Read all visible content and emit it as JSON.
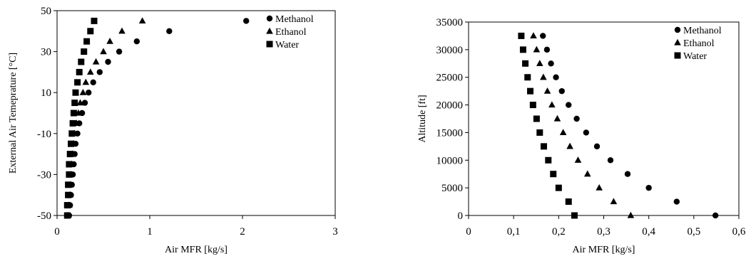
{
  "chart_data": [
    {
      "type": "scatter",
      "title": "",
      "xlabel": "Air MFR [kg/s]",
      "ylabel": "External Air Temeprature [°C]",
      "xlim": [
        0,
        3
      ],
      "ylim": [
        -50,
        50
      ],
      "xticks": [
        "0",
        "1",
        "2",
        "3"
      ],
      "yticks": [
        "-50",
        "-30",
        "-10",
        "10",
        "30",
        "50"
      ],
      "grid": false,
      "legend_position": "top-right",
      "series": [
        {
          "name": "Methanol",
          "marker": "circle",
          "color": "#000000",
          "x": [
            0.13,
            0.14,
            0.15,
            0.16,
            0.17,
            0.18,
            0.19,
            0.2,
            0.22,
            0.24,
            0.27,
            0.3,
            0.34,
            0.39,
            0.46,
            0.55,
            0.67,
            0.86,
            1.21,
            2.04
          ],
          "y": [
            -50,
            -45,
            -40,
            -35,
            -30,
            -25,
            -20,
            -15,
            -10,
            -5,
            0,
            5,
            10,
            15,
            20,
            25,
            30,
            35,
            40,
            45
          ]
        },
        {
          "name": "Ethanol",
          "marker": "triangle",
          "color": "#000000",
          "x": [
            0.12,
            0.13,
            0.14,
            0.145,
            0.15,
            0.16,
            0.17,
            0.18,
            0.19,
            0.21,
            0.23,
            0.25,
            0.28,
            0.31,
            0.36,
            0.42,
            0.5,
            0.57,
            0.7,
            0.92
          ],
          "y": [
            -50,
            -45,
            -40,
            -35,
            -30,
            -25,
            -20,
            -15,
            -10,
            -5,
            0,
            5,
            10,
            15,
            20,
            25,
            30,
            35,
            40,
            45
          ]
        },
        {
          "name": "Water",
          "marker": "square",
          "color": "#000000",
          "x": [
            0.11,
            0.11,
            0.12,
            0.12,
            0.13,
            0.13,
            0.14,
            0.15,
            0.16,
            0.17,
            0.18,
            0.19,
            0.2,
            0.22,
            0.24,
            0.26,
            0.29,
            0.32,
            0.36,
            0.4
          ],
          "y": [
            -50,
            -45,
            -40,
            -35,
            -30,
            -25,
            -20,
            -15,
            -10,
            -5,
            0,
            5,
            10,
            15,
            20,
            25,
            30,
            35,
            40,
            45
          ]
        }
      ]
    },
    {
      "type": "scatter",
      "title": "",
      "xlabel": "Air MFR [kg/s]",
      "ylabel": "Altitude [ft]",
      "xlim": [
        0,
        0.6
      ],
      "ylim": [
        0,
        35000
      ],
      "xticks": [
        "0",
        "0,1",
        "0,2",
        "0,3",
        "0,4",
        "0,5",
        "0,6"
      ],
      "yticks": [
        "0",
        "5000",
        "10000",
        "15000",
        "20000",
        "25000",
        "30000",
        "35000"
      ],
      "grid": false,
      "legend_position": "top-right",
      "series": [
        {
          "name": "Methanol",
          "marker": "circle",
          "color": "#000000",
          "x": [
            0.548,
            0.462,
            0.4,
            0.353,
            0.315,
            0.285,
            0.261,
            0.24,
            0.222,
            0.207,
            0.194,
            0.183,
            0.174,
            0.165
          ],
          "y": [
            0,
            2500,
            5000,
            7500,
            10000,
            12500,
            15000,
            17500,
            20000,
            22500,
            25000,
            27500,
            30000,
            32500
          ]
        },
        {
          "name": "Ethanol",
          "marker": "triangle",
          "color": "#000000",
          "x": [
            0.36,
            0.322,
            0.29,
            0.264,
            0.243,
            0.225,
            0.21,
            0.197,
            0.185,
            0.175,
            0.166,
            0.158,
            0.151,
            0.144
          ],
          "y": [
            0,
            2500,
            5000,
            7500,
            10000,
            12500,
            15000,
            17500,
            20000,
            22500,
            25000,
            27500,
            30000,
            32500
          ]
        },
        {
          "name": "Water",
          "marker": "square",
          "color": "#000000",
          "x": [
            0.235,
            0.222,
            0.2,
            0.188,
            0.177,
            0.167,
            0.158,
            0.151,
            0.143,
            0.137,
            0.131,
            0.126,
            0.121,
            0.117
          ],
          "y": [
            0,
            2500,
            5000,
            7500,
            10000,
            12500,
            15000,
            17500,
            20000,
            22500,
            25000,
            27500,
            30000,
            32500
          ]
        }
      ]
    }
  ]
}
